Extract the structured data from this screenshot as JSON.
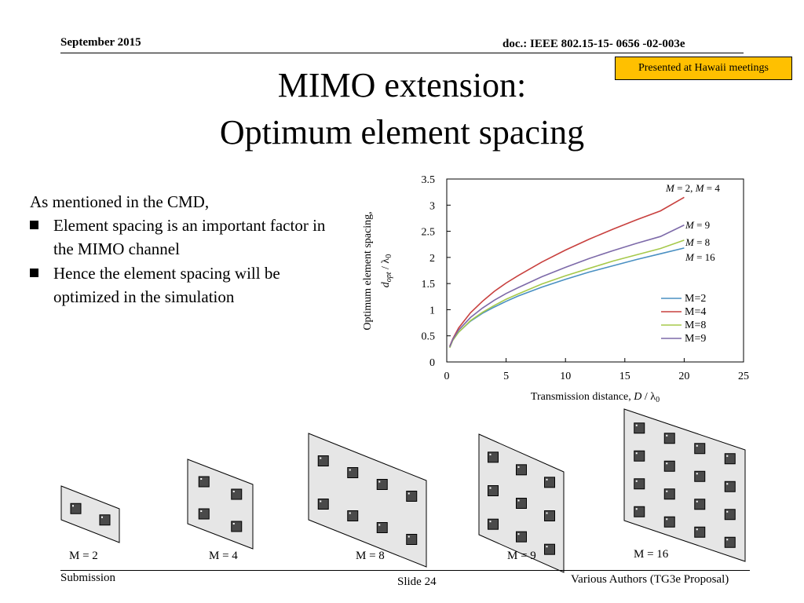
{
  "header": {
    "date": "September 2015",
    "doc_id": "doc.: IEEE 802.15-15- 0656 -02-003e",
    "badge": "Presented at Hawaii meetings"
  },
  "slide": {
    "title_line1": "MIMO extension:",
    "title_line2": "Optimum element spacing",
    "intro": "As mentioned in the CMD,",
    "bullets": [
      "Element spacing is an important factor in the MIMO channel",
      "Hence the element spacing will be optimized in the simulation"
    ]
  },
  "chart_data": {
    "type": "line",
    "xlabel": "Transmission distance, D / λ0",
    "ylabel": "Optimum element spacing, dopt / λ0",
    "xlim": [
      0,
      25
    ],
    "ylim": [
      0,
      3.5
    ],
    "xticks": [
      "0",
      "5",
      "10",
      "15",
      "20",
      "25"
    ],
    "yticks": [
      "0",
      "0.5",
      "1",
      "1.5",
      "2",
      "2.5",
      "3",
      "3.5"
    ],
    "x": [
      0.25,
      0.5,
      1,
      2,
      3,
      4,
      5,
      6,
      8,
      10,
      12,
      14,
      16,
      18,
      20
    ],
    "series": [
      {
        "name": "M=2",
        "color": "#4a90c2",
        "values": [
          0.28,
          0.42,
          0.57,
          0.78,
          0.93,
          1.05,
          1.16,
          1.26,
          1.43,
          1.58,
          1.72,
          1.84,
          1.96,
          2.07,
          2.18
        ]
      },
      {
        "name": "M=4",
        "color": "#c8403e",
        "values": [
          0.3,
          0.44,
          0.65,
          0.94,
          1.16,
          1.35,
          1.51,
          1.65,
          1.91,
          2.14,
          2.35,
          2.54,
          2.72,
          2.89,
          3.15
        ]
      },
      {
        "name": "M=8",
        "color": "#a6c94b",
        "values": [
          0.27,
          0.41,
          0.57,
          0.79,
          0.95,
          1.08,
          1.2,
          1.3,
          1.49,
          1.65,
          1.79,
          1.93,
          2.05,
          2.17,
          2.33
        ]
      },
      {
        "name": "M=9",
        "color": "#7d6aa9",
        "values": [
          0.29,
          0.43,
          0.61,
          0.85,
          1.03,
          1.18,
          1.31,
          1.42,
          1.63,
          1.81,
          1.98,
          2.13,
          2.27,
          2.4,
          2.62
        ]
      }
    ],
    "legend": "lower-right",
    "annotations": [
      {
        "label": "M = 2, M = 4"
      },
      {
        "label": "M = 9"
      },
      {
        "label": "M = 8"
      },
      {
        "label": "M = 16"
      }
    ]
  },
  "arrays": [
    {
      "label": "M = 2",
      "rows": 1,
      "cols": 2
    },
    {
      "label": "M = 4",
      "rows": 2,
      "cols": 2
    },
    {
      "label": "M = 8",
      "rows": 2,
      "cols": 4
    },
    {
      "label": "M = 9",
      "rows": 3,
      "cols": 3
    },
    {
      "label": "M = 16",
      "rows": 4,
      "cols": 4
    }
  ],
  "footer": {
    "left": "Submission",
    "center": "Slide 24",
    "right": "Various Authors (TG3e Proposal)"
  }
}
